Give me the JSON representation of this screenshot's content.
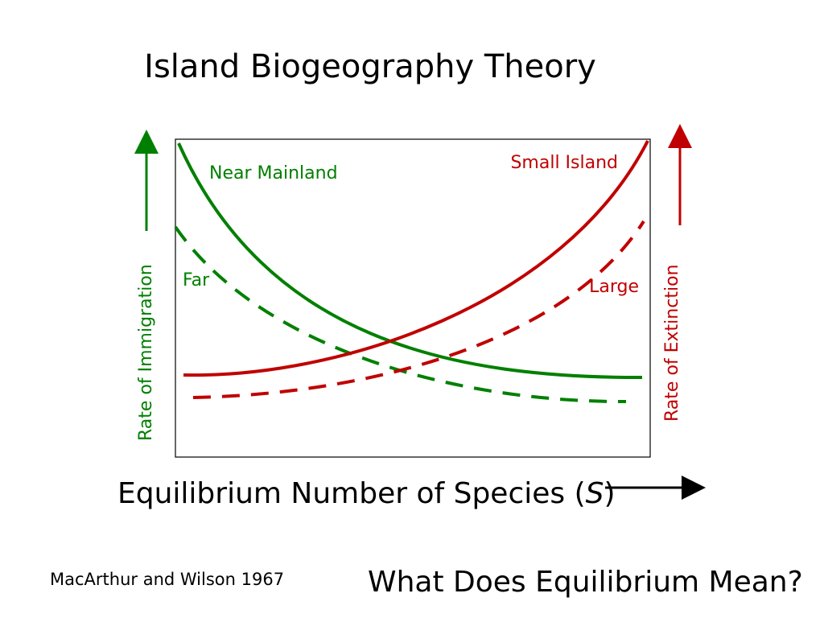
{
  "title": "Island Biogeography Theory",
  "curves": {
    "near": "Near Mainland",
    "far": "Far",
    "small": "Small Island",
    "large": "Large"
  },
  "axes": {
    "y_left": "Rate of Immigration",
    "y_right": "Rate of Extinction",
    "x": {
      "before": "Equilibrium Number of Species (",
      "symbol": "S",
      "after": ")"
    }
  },
  "citation": "MacArthur and Wilson 1967",
  "question": "What Does Equilibrium Mean?"
}
